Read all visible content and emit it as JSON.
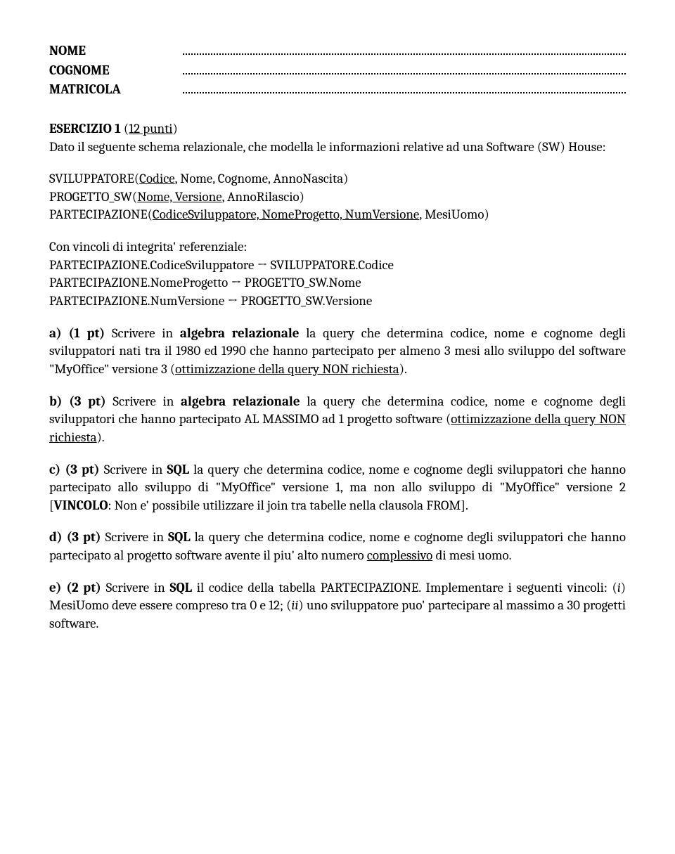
{
  "header": {
    "nome": "NOME",
    "cognome": "COGNOME",
    "matricola": "MATRICOLA"
  },
  "exercise": {
    "title_bold": "ESERCIZIO 1",
    "title_rest": " (",
    "title_under": "12 punti",
    "title_close": ")",
    "intro": "Dato il seguente schema relazionale, che modella le informazioni relative ad una Software (SW) House:"
  },
  "schema": {
    "line1_pre": "SVILUPPATORE(",
    "line1_key": "Codice",
    "line1_post": ", Nome, Cognome, AnnoNascita)",
    "line2_pre": "PROGETTO_SW(",
    "line2_key": "Nome, Versione",
    "line2_post": ", AnnoRilascio)",
    "line3_pre": "PARTECIPAZIONE(",
    "line3_key": "CodiceSviluppatore, NomeProgetto, NumVersione",
    "line3_post": ", MesiUomo)"
  },
  "constraints": {
    "intro": "Con vincoli di integrita' referenziale:",
    "c1": "PARTECIPAZIONE.CodiceSviluppatore → SVILUPPATORE.Codice",
    "c2": "PARTECIPAZIONE.NomeProgetto → PROGETTO_SW.Nome",
    "c3": "PARTECIPAZIONE.NumVersione → PROGETTO_SW.Versione"
  },
  "q_a": {
    "label": "a) (1 pt) ",
    "t1": "Scrivere in ",
    "alg": "algebra relazionale",
    "t2": " la query che determina codice, nome e cognome degli sviluppatori nati tra il 1980 ed 1990 che hanno partecipato per almeno 3 mesi allo sviluppo del software \"MyOffice\" versione 3 (",
    "under": "ottimizzazione della query NON richiesta",
    "t3": ")."
  },
  "q_b": {
    "label": "b) (3 pt) ",
    "t1": "Scrivere in ",
    "alg": "algebra relazionale",
    "t2": " la query che determina codice, nome e cognome degli sviluppatori che hanno partecipato AL MASSIMO ad 1 progetto software (",
    "under": "ottimizzazione della query NON richiesta",
    "t3": ")."
  },
  "q_c": {
    "label": "c) (3 pt) ",
    "t1": "Scrivere in ",
    "sql": "SQL",
    "t2": " la query che determina codice, nome e cognome degli sviluppatori che hanno partecipato allo sviluppo di \"MyOffice\" versione 1, ma non allo sviluppo di \"MyOffice\" versione 2 [",
    "vinc": "VINCOLO",
    "t3": ": Non e' possibile utilizzare il join tra tabelle nella clausola FROM]."
  },
  "q_d": {
    "label": "d) (3 pt) ",
    "t1": "Scrivere in ",
    "sql": "SQL",
    "t2": " la query che determina codice, nome e cognome degli sviluppatori che hanno partecipato al progetto software avente il piu' alto numero ",
    "under": "complessivo",
    "t3": " di mesi uomo."
  },
  "q_e": {
    "label": "e) (2 pt) ",
    "t1": "Scrivere in ",
    "sql": "SQL",
    "t2": " il codice della tabella PARTECIPAZIONE. Implementare i seguenti vincoli: (",
    "i1": "i",
    "t3": ") MesiUomo deve essere compreso tra 0 e 12; (",
    "i2": "ii",
    "t4": ") uno sviluppatore puo' partecipare al  massimo a 30 progetti software."
  }
}
